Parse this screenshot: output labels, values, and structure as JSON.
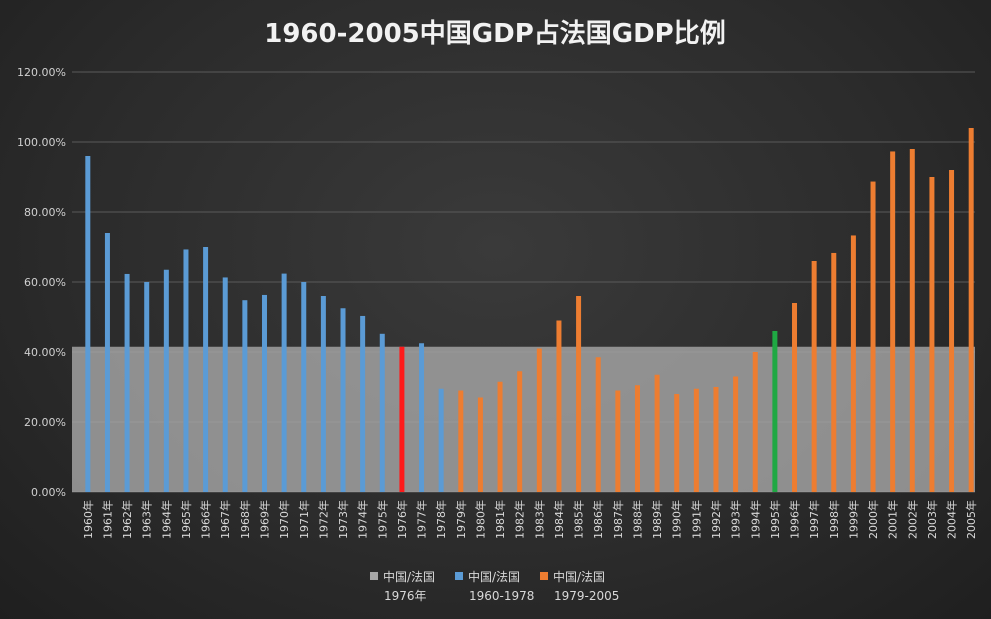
{
  "chart_data": {
    "type": "bar",
    "title": "1960-2005中国GDP占法国GDP比例",
    "xlabel": "",
    "ylabel": "",
    "ylim": [
      0,
      1.2
    ],
    "y_ticks": [
      "0.00%",
      "20.00%",
      "40.00%",
      "60.00%",
      "80.00%",
      "100.00%",
      "120.00%"
    ],
    "grid": true,
    "legend_position": "bottom",
    "categories": [
      "1960年",
      "1961年",
      "1962年",
      "1963年",
      "1964年",
      "1965年",
      "1966年",
      "1967年",
      "1968年",
      "1969年",
      "1970年",
      "1971年",
      "1972年",
      "1973年",
      "1974年",
      "1975年",
      "1976年",
      "1977年",
      "1978年",
      "1979年",
      "1980年",
      "1981年",
      "1982年",
      "1983年",
      "1984年",
      "1985年",
      "1986年",
      "1987年",
      "1988年",
      "1989年",
      "1990年",
      "1991年",
      "1992年",
      "1993年",
      "1994年",
      "1995年",
      "1996年",
      "1997年",
      "1998年",
      "1999年",
      "2000年",
      "2001年",
      "2002年",
      "2003年",
      "2004年",
      "2005年"
    ],
    "values": [
      0.96,
      0.74,
      0.623,
      0.6,
      0.635,
      0.693,
      0.7,
      0.613,
      0.548,
      0.563,
      0.624,
      0.6,
      0.56,
      0.525,
      0.503,
      0.452,
      0.415,
      0.425,
      0.295,
      0.29,
      0.27,
      0.315,
      0.345,
      0.41,
      0.49,
      0.56,
      0.385,
      0.29,
      0.305,
      0.335,
      0.28,
      0.295,
      0.3,
      0.33,
      0.4,
      0.46,
      0.54,
      0.66,
      0.683,
      0.733,
      0.887,
      0.973,
      0.98,
      0.9,
      0.92,
      1.04
    ],
    "bar_colors": [
      "#5b9bd5",
      "#5b9bd5",
      "#5b9bd5",
      "#5b9bd5",
      "#5b9bd5",
      "#5b9bd5",
      "#5b9bd5",
      "#5b9bd5",
      "#5b9bd5",
      "#5b9bd5",
      "#5b9bd5",
      "#5b9bd5",
      "#5b9bd5",
      "#5b9bd5",
      "#5b9bd5",
      "#5b9bd5",
      "#ff1a1a",
      "#5b9bd5",
      "#5b9bd5",
      "#ed7d31",
      "#ed7d31",
      "#ed7d31",
      "#ed7d31",
      "#ed7d31",
      "#ed7d31",
      "#ed7d31",
      "#ed7d31",
      "#ed7d31",
      "#ed7d31",
      "#ed7d31",
      "#ed7d31",
      "#ed7d31",
      "#ed7d31",
      "#ed7d31",
      "#ed7d31",
      "#1fa843",
      "#ed7d31",
      "#ed7d31",
      "#ed7d31",
      "#ed7d31",
      "#ed7d31",
      "#ed7d31",
      "#ed7d31",
      "#ed7d31",
      "#ed7d31",
      "#ed7d31"
    ],
    "area_series": {
      "name": "中国/法国 1976年",
      "value": 0.415,
      "color": "#a6a6a6"
    },
    "series": [
      {
        "name_line1": "中国/法国",
        "name_line2": "1976年",
        "color": "#a6a6a6"
      },
      {
        "name_line1": "中国/法国",
        "name_line2": "1960-1978",
        "color": "#5b9bd5"
      },
      {
        "name_line1": "中国/法国",
        "name_line2": "1979-2005",
        "color": "#ed7d31"
      }
    ]
  }
}
